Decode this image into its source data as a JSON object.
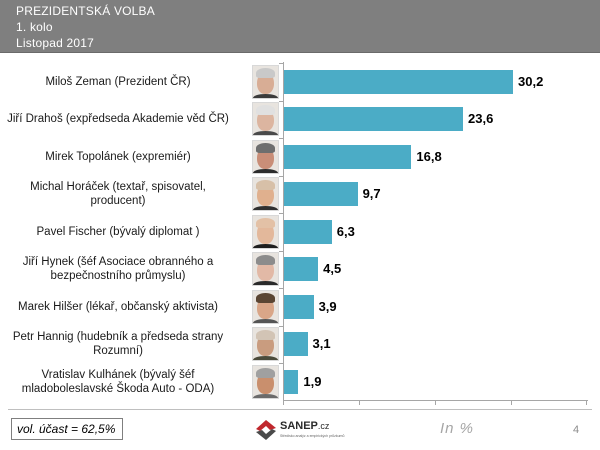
{
  "header": {
    "title": "PREZIDENTSKÁ  VOLBA",
    "round": "1. kolo",
    "date": "Listopad  2017"
  },
  "chart_data": {
    "type": "bar",
    "orientation": "horizontal",
    "title": "PREZIDENTSKÁ VOLBA – 1. kolo – Listopad 2017",
    "xlabel": "In %",
    "ylabel": "",
    "xlim": [
      0,
      40
    ],
    "x_ticks": [
      0,
      10,
      20,
      30,
      40
    ],
    "tick_labels_shown": false,
    "grid": false,
    "legend": "none",
    "bar_color": "#4bacc6",
    "categories": [
      [
        "Miloš Zeman (Prezident ČR)"
      ],
      [
        "Jiří Drahoš (expředseda Akademie věd ČR)"
      ],
      [
        "Mirek Topolánek (expremiér)"
      ],
      [
        "Michal Horáček (textař, spisovatel,",
        "producent)"
      ],
      [
        "Pavel Fischer  (bývalý diplomat )"
      ],
      [
        "Jiří Hynek (šéf Asociace obranného a",
        "bezpečnostního průmyslu)"
      ],
      [
        "Marek Hilšer (lékař, občanský aktivista)"
      ],
      [
        "Petr Hannig (hudebník a předseda strany",
        "Rozumní)"
      ],
      [
        "Vratislav Kulhánek (bývalý šéf",
        "mladoboleslavské Škoda Auto - ODA)"
      ]
    ],
    "values": [
      30.2,
      23.6,
      16.8,
      9.7,
      6.3,
      4.5,
      3.9,
      3.1,
      1.9
    ],
    "value_labels": [
      "30,2",
      "23,6",
      "16,8",
      "9,7",
      "6,3",
      "4,5",
      "3,9",
      "3,1",
      "1,9"
    ]
  },
  "photos": [
    {
      "hair": "#c9c9c9",
      "skin": "#d8ad95",
      "shirt": "#3b3b3b"
    },
    {
      "hair": "#e0e0e0",
      "skin": "#dcb5a0",
      "shirt": "#4a4a4a"
    },
    {
      "hair": "#6e6e6e",
      "skin": "#c98e78",
      "shirt": "#2c2c2c"
    },
    {
      "hair": "#d7c0a8",
      "skin": "#e0b08e",
      "shirt": "#303030"
    },
    {
      "hair": "#e3c1a6",
      "skin": "#e3b89b",
      "shirt": "#1f1f1f"
    },
    {
      "hair": "#8c8c8c",
      "skin": "#e2b9a6",
      "shirt": "#2a2a2a"
    },
    {
      "hair": "#5a4533",
      "skin": "#d9a688",
      "shirt": "#555555"
    },
    {
      "hair": "#d2c4b5",
      "skin": "#c99c7f",
      "shirt": "#4b4b3b"
    },
    {
      "hair": "#a0a0a0",
      "skin": "#c98f6d",
      "shirt": "#6b6b6b"
    }
  ],
  "footer": {
    "turnout": "vol. účast = 62,5%",
    "logo_name": "SANEP",
    "logo_domain": ".cz",
    "logo_tagline": "Středisko analýz a empirických průzkumů",
    "unit": "In %",
    "page_number": "4"
  }
}
